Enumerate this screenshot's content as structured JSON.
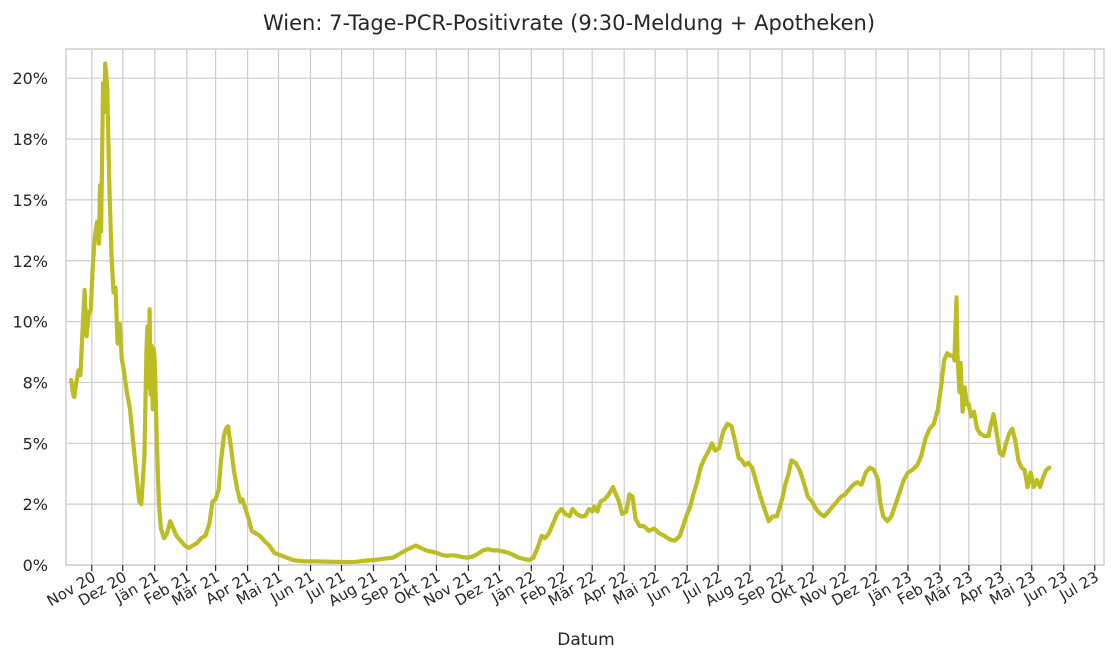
{
  "chart_data": {
    "type": "line",
    "title": "Wien: 7-Tage-PCR-Positivrate (9:30-Meldung + Apotheken)",
    "xlabel": "Datum",
    "ylabel": "",
    "ylim": [
      0,
      21.2
    ],
    "yticks": [
      0,
      2.5,
      5,
      7.5,
      10,
      12.5,
      15,
      17.5,
      20
    ],
    "ytick_labels": [
      "0%",
      "2%",
      "5%",
      "8%",
      "10%",
      "12%",
      "15%",
      "18%",
      "20%"
    ],
    "xlim": [
      "2020-10-07",
      "2023-07-10"
    ],
    "xticks": [
      "2020-11-01",
      "2020-12-01",
      "2021-01-01",
      "2021-02-01",
      "2021-03-01",
      "2021-04-01",
      "2021-05-01",
      "2021-06-01",
      "2021-07-01",
      "2021-08-01",
      "2021-09-01",
      "2021-10-01",
      "2021-11-01",
      "2021-12-01",
      "2022-01-01",
      "2022-02-01",
      "2022-03-01",
      "2022-04-01",
      "2022-05-01",
      "2022-06-01",
      "2022-07-01",
      "2022-08-01",
      "2022-09-01",
      "2022-10-01",
      "2022-11-01",
      "2022-12-01",
      "2023-01-01",
      "2023-02-01",
      "2023-03-01",
      "2023-04-01",
      "2023-05-01",
      "2023-06-01",
      "2023-07-01"
    ],
    "xtick_labels": [
      "Nov 20",
      "Dez 20",
      "Jän 21",
      "Feb 21",
      "Mär 21",
      "Apr 21",
      "Mai 21",
      "Jun 21",
      "Jul 21",
      "Aug 21",
      "Sep 21",
      "Okt 21",
      "Nov 21",
      "Dez 21",
      "Jän 22",
      "Feb 22",
      "Mär 22",
      "Apr 22",
      "Mai 22",
      "Jun 22",
      "Jul 22",
      "Aug 22",
      "Sep 22",
      "Okt 22",
      "Nov 22",
      "Dez 22",
      "Jän 23",
      "Feb 23",
      "Mär 23",
      "Apr 23",
      "Mai 23",
      "Jun 23",
      "Jul 23"
    ],
    "grid": true,
    "series": [
      {
        "color": "#bcbd22",
        "points": [
          [
            "2020-10-12",
            7.6
          ],
          [
            "2020-10-14",
            7.0
          ],
          [
            "2020-10-15",
            6.9
          ],
          [
            "2020-10-17",
            7.5
          ],
          [
            "2020-10-19",
            8.0
          ],
          [
            "2020-10-21",
            7.8
          ],
          [
            "2020-10-23",
            9.6
          ],
          [
            "2020-10-25",
            11.3
          ],
          [
            "2020-10-27",
            9.4
          ],
          [
            "2020-10-29",
            10.3
          ],
          [
            "2020-10-31",
            10.5
          ],
          [
            "2020-11-02",
            12.3
          ],
          [
            "2020-11-04",
            13.5
          ],
          [
            "2020-11-06",
            14.1
          ],
          [
            "2020-11-08",
            13.2
          ],
          [
            "2020-11-09",
            15.6
          ],
          [
            "2020-11-10",
            13.7
          ],
          [
            "2020-11-12",
            19.8
          ],
          [
            "2020-11-13",
            18.6
          ],
          [
            "2020-11-14",
            20.6
          ],
          [
            "2020-11-15",
            20.2
          ],
          [
            "2020-11-16",
            19.5
          ],
          [
            "2020-11-18",
            15.7
          ],
          [
            "2020-11-20",
            12.8
          ],
          [
            "2020-11-22",
            11.2
          ],
          [
            "2020-11-24",
            11.4
          ],
          [
            "2020-11-26",
            9.1
          ],
          [
            "2020-11-28",
            9.9
          ],
          [
            "2020-11-30",
            8.5
          ],
          [
            "2020-12-02",
            8.0
          ],
          [
            "2020-12-05",
            7.1
          ],
          [
            "2020-12-08",
            6.4
          ],
          [
            "2020-12-11",
            5.1
          ],
          [
            "2020-12-14",
            3.8
          ],
          [
            "2020-12-17",
            2.6
          ],
          [
            "2020-12-19",
            2.5
          ],
          [
            "2020-12-22",
            4.5
          ],
          [
            "2020-12-24",
            8.9
          ],
          [
            "2020-12-25",
            9.8
          ],
          [
            "2020-12-26",
            7.3
          ],
          [
            "2020-12-27",
            10.5
          ],
          [
            "2020-12-28",
            7.0
          ],
          [
            "2020-12-29",
            9.0
          ],
          [
            "2020-12-30",
            6.4
          ],
          [
            "2020-12-31",
            8.9
          ],
          [
            "2021-01-01",
            8.4
          ],
          [
            "2021-01-03",
            5.1
          ],
          [
            "2021-01-05",
            2.5
          ],
          [
            "2021-01-07",
            1.5
          ],
          [
            "2021-01-10",
            1.1
          ],
          [
            "2021-01-13",
            1.3
          ],
          [
            "2021-01-16",
            1.8
          ],
          [
            "2021-01-19",
            1.5
          ],
          [
            "2021-01-22",
            1.2
          ],
          [
            "2021-01-26",
            1.0
          ],
          [
            "2021-01-30",
            0.8
          ],
          [
            "2021-02-03",
            0.7
          ],
          [
            "2021-02-07",
            0.8
          ],
          [
            "2021-02-11",
            0.9
          ],
          [
            "2021-02-15",
            1.1
          ],
          [
            "2021-02-19",
            1.2
          ],
          [
            "2021-02-23",
            1.7
          ],
          [
            "2021-02-26",
            2.6
          ],
          [
            "2021-03-01",
            2.7
          ],
          [
            "2021-03-04",
            3.1
          ],
          [
            "2021-03-06",
            4.2
          ],
          [
            "2021-03-09",
            5.3
          ],
          [
            "2021-03-11",
            5.6
          ],
          [
            "2021-03-13",
            5.7
          ],
          [
            "2021-03-16",
            4.8
          ],
          [
            "2021-03-19",
            3.8
          ],
          [
            "2021-03-22",
            3.1
          ],
          [
            "2021-03-25",
            2.6
          ],
          [
            "2021-03-27",
            2.7
          ],
          [
            "2021-03-30",
            2.3
          ],
          [
            "2021-04-02",
            1.9
          ],
          [
            "2021-04-05",
            1.4
          ],
          [
            "2021-04-09",
            1.3
          ],
          [
            "2021-04-13",
            1.2
          ],
          [
            "2021-04-17",
            1.0
          ],
          [
            "2021-04-22",
            0.8
          ],
          [
            "2021-04-27",
            0.5
          ],
          [
            "2021-05-03",
            0.4
          ],
          [
            "2021-05-09",
            0.3
          ],
          [
            "2021-05-15",
            0.2
          ],
          [
            "2021-05-25",
            0.15
          ],
          [
            "2021-06-05",
            0.15
          ],
          [
            "2021-06-15",
            0.14
          ],
          [
            "2021-06-25",
            0.13
          ],
          [
            "2021-07-05",
            0.12
          ],
          [
            "2021-07-15",
            0.13
          ],
          [
            "2021-07-25",
            0.18
          ],
          [
            "2021-08-05",
            0.22
          ],
          [
            "2021-08-15",
            0.28
          ],
          [
            "2021-08-20",
            0.3
          ],
          [
            "2021-08-26",
            0.45
          ],
          [
            "2021-09-01",
            0.6
          ],
          [
            "2021-09-06",
            0.7
          ],
          [
            "2021-09-11",
            0.8
          ],
          [
            "2021-09-16",
            0.7
          ],
          [
            "2021-09-21",
            0.6
          ],
          [
            "2021-09-26",
            0.55
          ],
          [
            "2021-10-01",
            0.5
          ],
          [
            "2021-10-06",
            0.42
          ],
          [
            "2021-10-11",
            0.38
          ],
          [
            "2021-10-16",
            0.4
          ],
          [
            "2021-10-21",
            0.38
          ],
          [
            "2021-10-26",
            0.33
          ],
          [
            "2021-10-31",
            0.3
          ],
          [
            "2021-11-05",
            0.35
          ],
          [
            "2021-11-10",
            0.45
          ],
          [
            "2021-11-15",
            0.6
          ],
          [
            "2021-11-20",
            0.65
          ],
          [
            "2021-11-25",
            0.6
          ],
          [
            "2021-11-30",
            0.6
          ],
          [
            "2021-12-05",
            0.55
          ],
          [
            "2021-12-10",
            0.5
          ],
          [
            "2021-12-15",
            0.4
          ],
          [
            "2021-12-20",
            0.3
          ],
          [
            "2021-12-25",
            0.25
          ],
          [
            "2021-12-30",
            0.2
          ],
          [
            "2022-01-03",
            0.3
          ],
          [
            "2022-01-07",
            0.7
          ],
          [
            "2022-01-11",
            1.2
          ],
          [
            "2022-01-14",
            1.1
          ],
          [
            "2022-01-18",
            1.3
          ],
          [
            "2022-01-22",
            1.7
          ],
          [
            "2022-01-26",
            2.1
          ],
          [
            "2022-01-30",
            2.3
          ],
          [
            "2022-02-03",
            2.1
          ],
          [
            "2022-02-07",
            2.0
          ],
          [
            "2022-02-10",
            2.3
          ],
          [
            "2022-02-14",
            2.1
          ],
          [
            "2022-02-18",
            2.0
          ],
          [
            "2022-02-22",
            2.0
          ],
          [
            "2022-02-26",
            2.3
          ],
          [
            "2022-03-01",
            2.2
          ],
          [
            "2022-03-03",
            2.4
          ],
          [
            "2022-03-06",
            2.2
          ],
          [
            "2022-03-09",
            2.6
          ],
          [
            "2022-03-13",
            2.7
          ],
          [
            "2022-03-17",
            2.9
          ],
          [
            "2022-03-21",
            3.2
          ],
          [
            "2022-03-24",
            2.9
          ],
          [
            "2022-03-27",
            2.6
          ],
          [
            "2022-03-30",
            2.1
          ],
          [
            "2022-04-03",
            2.2
          ],
          [
            "2022-04-06",
            2.9
          ],
          [
            "2022-04-09",
            2.8
          ],
          [
            "2022-04-12",
            1.9
          ],
          [
            "2022-04-16",
            1.6
          ],
          [
            "2022-04-20",
            1.6
          ],
          [
            "2022-04-25",
            1.4
          ],
          [
            "2022-04-30",
            1.5
          ],
          [
            "2022-05-05",
            1.3
          ],
          [
            "2022-05-10",
            1.2
          ],
          [
            "2022-05-15",
            1.05
          ],
          [
            "2022-05-20",
            1.0
          ],
          [
            "2022-05-25",
            1.2
          ],
          [
            "2022-05-28",
            1.6
          ],
          [
            "2022-06-01",
            2.1
          ],
          [
            "2022-06-04",
            2.4
          ],
          [
            "2022-06-07",
            2.9
          ],
          [
            "2022-06-10",
            3.3
          ],
          [
            "2022-06-14",
            4.0
          ],
          [
            "2022-06-18",
            4.4
          ],
          [
            "2022-06-22",
            4.7
          ],
          [
            "2022-06-25",
            5.0
          ],
          [
            "2022-06-28",
            4.7
          ],
          [
            "2022-07-02",
            4.8
          ],
          [
            "2022-07-06",
            5.5
          ],
          [
            "2022-07-10",
            5.8
          ],
          [
            "2022-07-14",
            5.7
          ],
          [
            "2022-07-18",
            5.0
          ],
          [
            "2022-07-21",
            4.4
          ],
          [
            "2022-07-24",
            4.3
          ],
          [
            "2022-07-27",
            4.1
          ],
          [
            "2022-07-30",
            4.2
          ],
          [
            "2022-08-03",
            4.0
          ],
          [
            "2022-08-07",
            3.4
          ],
          [
            "2022-08-11",
            2.8
          ],
          [
            "2022-08-15",
            2.3
          ],
          [
            "2022-08-19",
            1.8
          ],
          [
            "2022-08-23",
            2.0
          ],
          [
            "2022-08-27",
            2.0
          ],
          [
            "2022-09-01",
            2.7
          ],
          [
            "2022-09-04",
            3.3
          ],
          [
            "2022-09-07",
            3.7
          ],
          [
            "2022-09-10",
            4.3
          ],
          [
            "2022-09-14",
            4.2
          ],
          [
            "2022-09-18",
            3.9
          ],
          [
            "2022-09-22",
            3.4
          ],
          [
            "2022-09-26",
            2.8
          ],
          [
            "2022-09-30",
            2.6
          ],
          [
            "2022-10-04",
            2.3
          ],
          [
            "2022-10-08",
            2.1
          ],
          [
            "2022-10-12",
            2.0
          ],
          [
            "2022-10-16",
            2.2
          ],
          [
            "2022-10-20",
            2.4
          ],
          [
            "2022-10-24",
            2.6
          ],
          [
            "2022-10-28",
            2.8
          ],
          [
            "2022-11-01",
            2.9
          ],
          [
            "2022-11-05",
            3.1
          ],
          [
            "2022-11-09",
            3.3
          ],
          [
            "2022-11-13",
            3.4
          ],
          [
            "2022-11-17",
            3.3
          ],
          [
            "2022-11-21",
            3.8
          ],
          [
            "2022-11-25",
            4.0
          ],
          [
            "2022-11-29",
            3.9
          ],
          [
            "2022-12-03",
            3.5
          ],
          [
            "2022-12-05",
            2.6
          ],
          [
            "2022-12-08",
            2.0
          ],
          [
            "2022-12-12",
            1.8
          ],
          [
            "2022-12-16",
            2.0
          ],
          [
            "2022-12-20",
            2.5
          ],
          [
            "2022-12-24",
            3.0
          ],
          [
            "2022-12-28",
            3.5
          ],
          [
            "2023-01-01",
            3.8
          ],
          [
            "2023-01-05",
            3.9
          ],
          [
            "2023-01-10",
            4.1
          ],
          [
            "2023-01-14",
            4.5
          ],
          [
            "2023-01-18",
            5.2
          ],
          [
            "2023-01-22",
            5.6
          ],
          [
            "2023-01-26",
            5.8
          ],
          [
            "2023-01-30",
            6.4
          ],
          [
            "2023-02-02",
            7.3
          ],
          [
            "2023-02-05",
            8.4
          ],
          [
            "2023-02-08",
            8.7
          ],
          [
            "2023-02-11",
            8.6
          ],
          [
            "2023-02-14",
            8.6
          ],
          [
            "2023-02-15",
            8.4
          ],
          [
            "2023-02-17",
            11.0
          ],
          [
            "2023-02-18",
            8.6
          ],
          [
            "2023-02-20",
            7.1
          ],
          [
            "2023-02-21",
            8.3
          ],
          [
            "2023-02-23",
            6.3
          ],
          [
            "2023-02-25",
            7.3
          ],
          [
            "2023-02-27",
            6.6
          ],
          [
            "2023-03-01",
            6.6
          ],
          [
            "2023-03-03",
            6.1
          ],
          [
            "2023-03-06",
            6.3
          ],
          [
            "2023-03-09",
            5.6
          ],
          [
            "2023-03-12",
            5.4
          ],
          [
            "2023-03-16",
            5.3
          ],
          [
            "2023-03-20",
            5.3
          ],
          [
            "2023-03-22",
            5.7
          ],
          [
            "2023-03-25",
            6.2
          ],
          [
            "2023-03-28",
            5.4
          ],
          [
            "2023-03-31",
            4.6
          ],
          [
            "2023-04-03",
            4.5
          ],
          [
            "2023-04-06",
            5.0
          ],
          [
            "2023-04-09",
            5.4
          ],
          [
            "2023-04-12",
            5.6
          ],
          [
            "2023-04-15",
            5.1
          ],
          [
            "2023-04-18",
            4.3
          ],
          [
            "2023-04-21",
            4.0
          ],
          [
            "2023-04-24",
            3.9
          ],
          [
            "2023-04-27",
            3.2
          ],
          [
            "2023-04-30",
            3.8
          ],
          [
            "2023-05-03",
            3.2
          ],
          [
            "2023-05-06",
            3.5
          ],
          [
            "2023-05-09",
            3.2
          ],
          [
            "2023-05-12",
            3.6
          ],
          [
            "2023-05-15",
            3.9
          ],
          [
            "2023-05-18",
            4.0
          ]
        ]
      }
    ]
  }
}
